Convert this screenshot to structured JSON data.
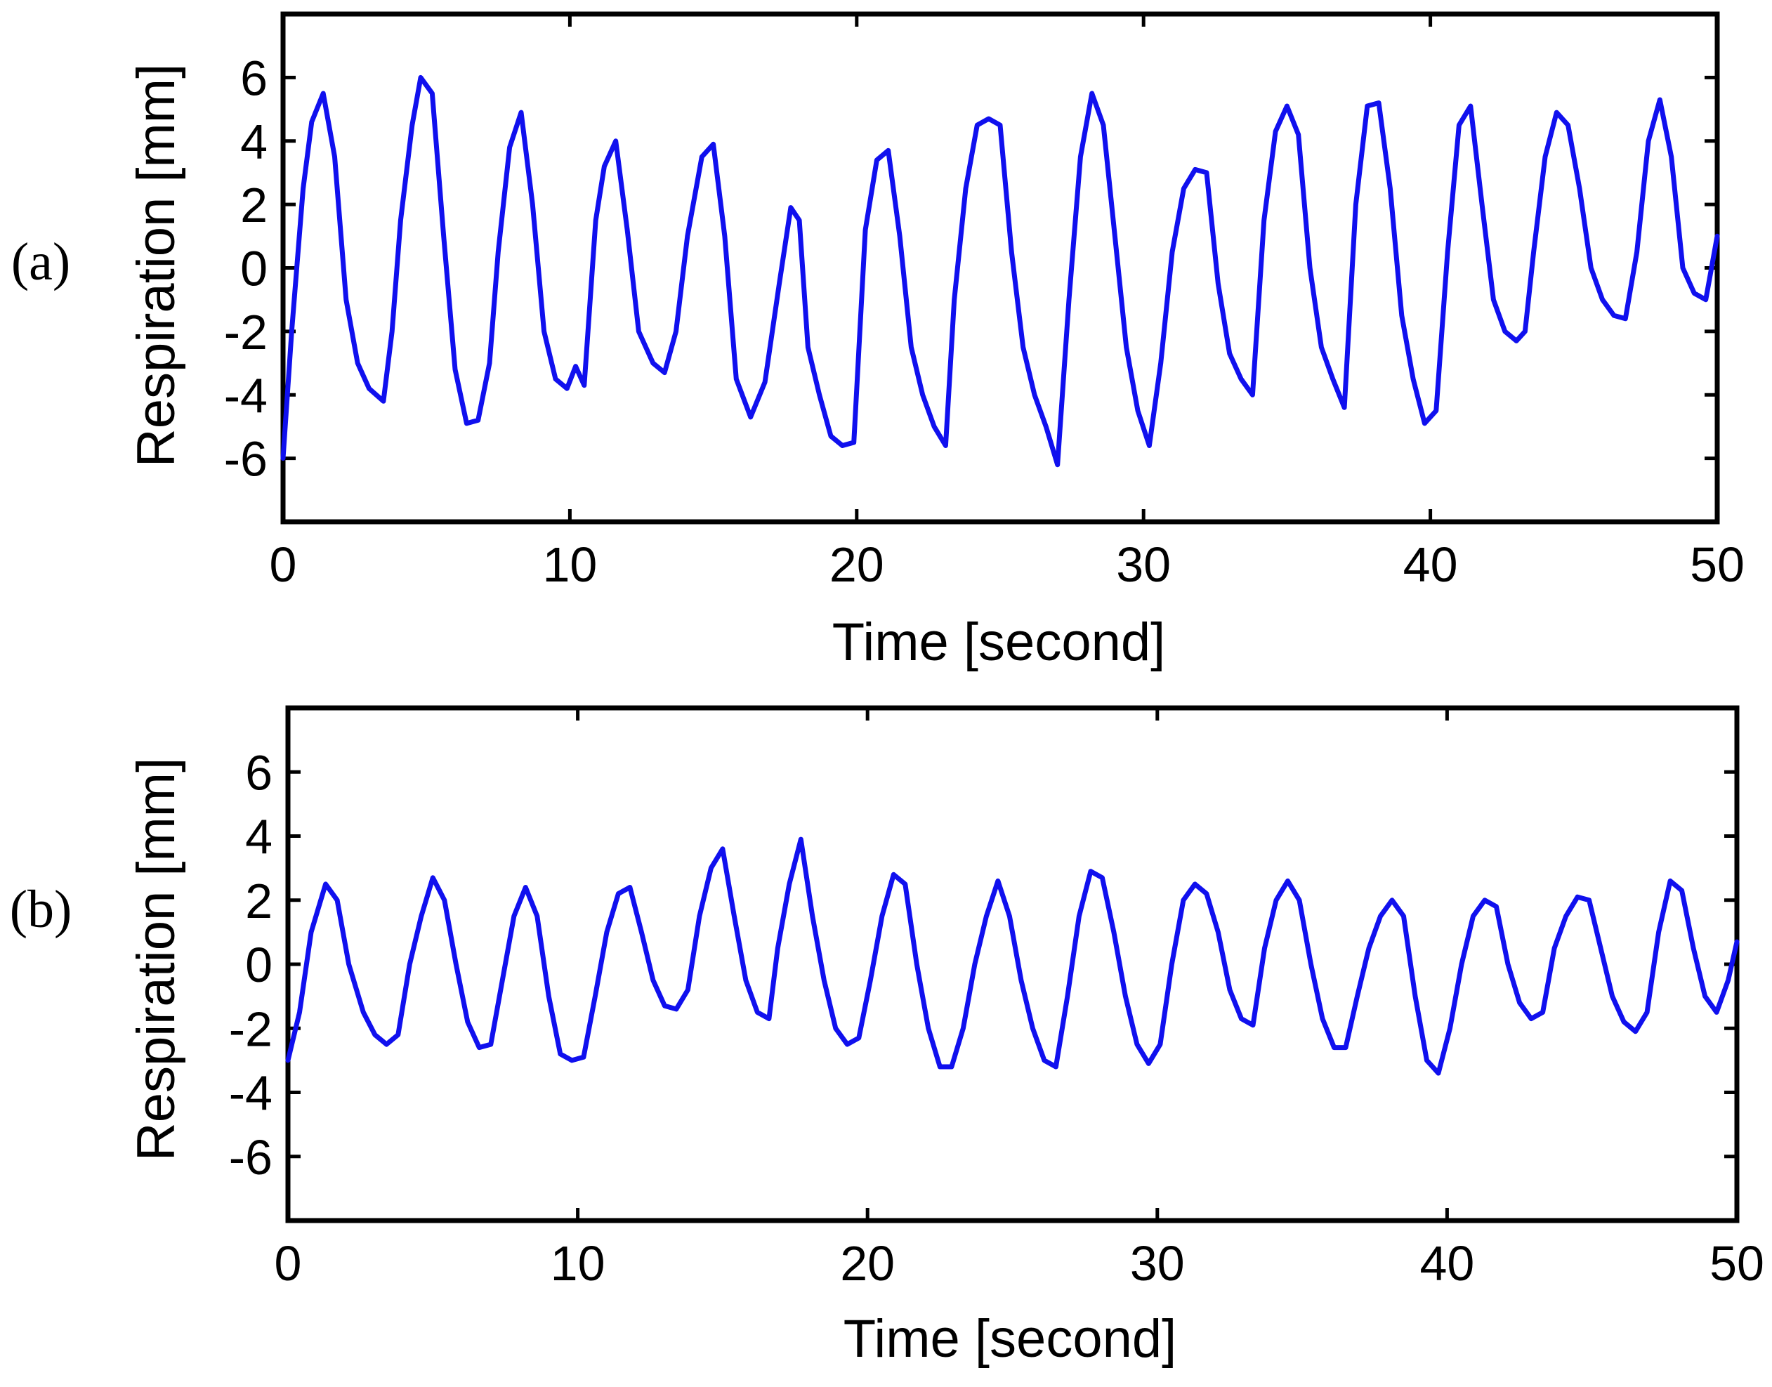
{
  "colors": {
    "line": "#1010ee",
    "axes": "#000000"
  },
  "chart_data": [
    {
      "type": "line",
      "panel_label": "(a)",
      "xlabel": "Time [second]",
      "ylabel": "Respiration [mm]",
      "xlim": [
        0,
        50
      ],
      "ylim": [
        -8,
        8
      ],
      "xticks": [
        0,
        10,
        20,
        30,
        40,
        50
      ],
      "yticks": [
        -6,
        -4,
        -2,
        0,
        2,
        4,
        6
      ],
      "xtick_labels": [
        "0",
        "10",
        "20",
        "30",
        "40",
        "50"
      ],
      "ytick_labels": [
        "-6",
        "-4",
        "-2",
        "0",
        "2",
        "4",
        "6"
      ],
      "grid": false,
      "series": [
        {
          "x": [
            0,
            0.3,
            0.7,
            1.0,
            1.4,
            1.8,
            2.2,
            2.6,
            3.0,
            3.5,
            3.8,
            4.1,
            4.5,
            4.8,
            5.2,
            5.6,
            6.0,
            6.4,
            6.8,
            7.2,
            7.5,
            7.9,
            8.3,
            8.7,
            9.1,
            9.5,
            9.9,
            10.2,
            10.5,
            10.9,
            11.2,
            11.6,
            12.0,
            12.4,
            12.9,
            13.3,
            13.7,
            14.1,
            14.6,
            15.0,
            15.4,
            15.8,
            16.3,
            16.8,
            17.3,
            17.7,
            18.0,
            18.3,
            18.7,
            19.1,
            19.5,
            19.9,
            20.3,
            20.7,
            21.1,
            21.5,
            21.9,
            22.3,
            22.7,
            23.1,
            23.4,
            23.8,
            24.2,
            24.6,
            25.0,
            25.4,
            25.8,
            26.2,
            26.6,
            27.0,
            27.4,
            27.8,
            28.2,
            28.6,
            29.0,
            29.4,
            29.8,
            30.2,
            30.6,
            31.0,
            31.4,
            31.8,
            32.2,
            32.6,
            33.0,
            33.4,
            33.8,
            34.2,
            34.6,
            35.0,
            35.4,
            35.8,
            36.2,
            36.6,
            37.0,
            37.4,
            37.8,
            38.2,
            38.6,
            39.0,
            39.4,
            39.8,
            40.2,
            40.6,
            41.0,
            41.4,
            41.8,
            42.2,
            42.6,
            43.0,
            43.3,
            43.6,
            44.0,
            44.4,
            44.8,
            45.2,
            45.6,
            46.0,
            46.4,
            46.8,
            47.2,
            47.6,
            48.0,
            48.4,
            48.8,
            49.2,
            49.6,
            50.0
          ],
          "values": [
            -6.0,
            -2.0,
            2.5,
            4.6,
            5.5,
            3.5,
            -1.0,
            -3.0,
            -3.8,
            -4.2,
            -2.0,
            1.5,
            4.5,
            6.0,
            5.5,
            1.0,
            -3.2,
            -4.9,
            -4.8,
            -3.0,
            0.5,
            3.8,
            4.9,
            2.0,
            -2.0,
            -3.5,
            -3.8,
            -3.1,
            -3.7,
            1.5,
            3.2,
            4.0,
            1.2,
            -2.0,
            -3.0,
            -3.3,
            -2.0,
            1.0,
            3.5,
            3.9,
            1.0,
            -3.5,
            -4.7,
            -3.6,
            -0.5,
            1.9,
            1.5,
            -2.5,
            -4.0,
            -5.3,
            -5.6,
            -5.5,
            1.2,
            3.4,
            3.7,
            1.0,
            -2.5,
            -4.0,
            -5.0,
            -5.6,
            -1.0,
            2.5,
            4.5,
            4.7,
            4.5,
            0.5,
            -2.5,
            -4.0,
            -5.0,
            -6.2,
            -1.0,
            3.5,
            5.5,
            4.5,
            1.0,
            -2.5,
            -4.5,
            -5.6,
            -3.0,
            0.5,
            2.5,
            3.1,
            3.0,
            -0.5,
            -2.7,
            -3.5,
            -4.0,
            1.5,
            4.3,
            5.1,
            4.2,
            0.0,
            -2.5,
            -3.5,
            -4.4,
            2.0,
            5.1,
            5.2,
            2.5,
            -1.5,
            -3.5,
            -4.9,
            -4.5,
            0.5,
            4.5,
            5.1,
            2.0,
            -1.0,
            -2.0,
            -2.3,
            -2.0,
            0.5,
            3.5,
            4.9,
            4.5,
            2.5,
            0.0,
            -1.0,
            -1.5,
            -1.6,
            0.5,
            4.0,
            5.3,
            3.5,
            0.0,
            -0.8,
            -1.0,
            1.0
          ]
        }
      ]
    },
    {
      "type": "line",
      "panel_label": "(b)",
      "xlabel": "Time [second]",
      "ylabel": "Respiration [mm]",
      "xlim": [
        0,
        50
      ],
      "ylim": [
        -8,
        8
      ],
      "xticks": [
        0,
        10,
        20,
        30,
        40,
        50
      ],
      "yticks": [
        -6,
        -4,
        -2,
        0,
        2,
        4,
        6
      ],
      "xtick_labels": [
        "0",
        "10",
        "20",
        "30",
        "40",
        "50"
      ],
      "ytick_labels": [
        "-6",
        "-4",
        "-2",
        "0",
        "2",
        "4",
        "6"
      ],
      "grid": false,
      "series": [
        {
          "x": [
            0,
            0.4,
            0.8,
            1.3,
            1.7,
            2.1,
            2.6,
            3.0,
            3.4,
            3.8,
            4.2,
            4.6,
            5.0,
            5.4,
            5.8,
            6.2,
            6.6,
            7.0,
            7.4,
            7.8,
            8.2,
            8.6,
            9.0,
            9.4,
            9.8,
            10.2,
            10.6,
            11.0,
            11.4,
            11.8,
            12.2,
            12.6,
            13.0,
            13.4,
            13.8,
            14.2,
            14.6,
            15.0,
            15.4,
            15.8,
            16.2,
            16.6,
            16.9,
            17.3,
            17.7,
            18.1,
            18.5,
            18.9,
            19.3,
            19.7,
            20.1,
            20.5,
            20.9,
            21.3,
            21.7,
            22.1,
            22.5,
            22.9,
            23.3,
            23.7,
            24.1,
            24.5,
            24.9,
            25.3,
            25.7,
            26.1,
            26.5,
            26.9,
            27.3,
            27.7,
            28.1,
            28.5,
            28.9,
            29.3,
            29.7,
            30.1,
            30.5,
            30.9,
            31.3,
            31.7,
            32.1,
            32.5,
            32.9,
            33.3,
            33.7,
            34.1,
            34.5,
            34.9,
            35.3,
            35.7,
            36.1,
            36.5,
            36.9,
            37.3,
            37.7,
            38.1,
            38.5,
            38.9,
            39.3,
            39.7,
            40.1,
            40.5,
            40.9,
            41.3,
            41.7,
            42.1,
            42.5,
            42.9,
            43.3,
            43.7,
            44.1,
            44.5,
            44.9,
            45.3,
            45.7,
            46.1,
            46.5,
            46.9,
            47.3,
            47.7,
            48.1,
            48.5,
            48.9,
            49.3,
            49.7,
            50.0
          ],
          "values": [
            -3.0,
            -1.5,
            1.0,
            2.5,
            2.0,
            0.0,
            -1.5,
            -2.2,
            -2.5,
            -2.2,
            0.0,
            1.5,
            2.7,
            2.0,
            0.0,
            -1.8,
            -2.6,
            -2.5,
            -0.5,
            1.5,
            2.4,
            1.5,
            -1.0,
            -2.8,
            -3.0,
            -2.9,
            -1.0,
            1.0,
            2.2,
            2.4,
            1.0,
            -0.5,
            -1.3,
            -1.4,
            -0.8,
            1.5,
            3.0,
            3.6,
            1.5,
            -0.5,
            -1.5,
            -1.7,
            0.5,
            2.5,
            3.9,
            1.5,
            -0.5,
            -2.0,
            -2.5,
            -2.3,
            -0.5,
            1.5,
            2.8,
            2.5,
            0.0,
            -2.0,
            -3.2,
            -3.2,
            -2.0,
            0.0,
            1.5,
            2.6,
            1.5,
            -0.5,
            -2.0,
            -3.0,
            -3.2,
            -1.0,
            1.5,
            2.9,
            2.7,
            1.0,
            -1.0,
            -2.5,
            -3.1,
            -2.5,
            0.0,
            2.0,
            2.5,
            2.2,
            1.0,
            -0.8,
            -1.7,
            -1.9,
            0.5,
            2.0,
            2.6,
            2.0,
            0.0,
            -1.7,
            -2.6,
            -2.6,
            -1.0,
            0.5,
            1.5,
            2.0,
            1.5,
            -1.0,
            -3.0,
            -3.4,
            -2.0,
            0.0,
            1.5,
            2.0,
            1.8,
            0.0,
            -1.2,
            -1.7,
            -1.5,
            0.5,
            1.5,
            2.1,
            2.0,
            0.5,
            -1.0,
            -1.8,
            -2.1,
            -1.5,
            1.0,
            2.6,
            2.3,
            0.5,
            -1.0,
            -1.5,
            -0.5,
            0.7
          ]
        }
      ]
    }
  ]
}
